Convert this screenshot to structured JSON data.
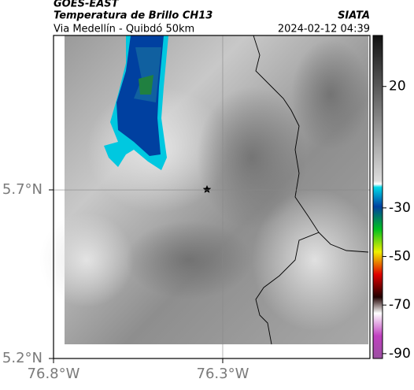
{
  "header": {
    "source": "GOES-EAST",
    "title": "Temperatura de Brillo CH13",
    "subtitle": "Via Medellín - Quibdó 50km",
    "org": "SIATA",
    "datetime": "2024-02-12 04:39"
  },
  "map": {
    "xlim": [
      -76.8,
      -75.865
    ],
    "ylim": [
      5.2,
      6.158
    ],
    "xticks": [
      {
        "value": -76.8,
        "label": "76.8°W"
      },
      {
        "value": -76.3,
        "label": "76.3°W"
      }
    ],
    "yticks": [
      {
        "value": 5.2,
        "label": "5.2°N"
      },
      {
        "value": 5.7,
        "label": "5.7°N"
      }
    ],
    "grid": true
  },
  "colorbar": {
    "lim": [
      -92,
      41
    ],
    "ticks": [
      20,
      -30,
      -50,
      -70,
      -90
    ]
  }
}
